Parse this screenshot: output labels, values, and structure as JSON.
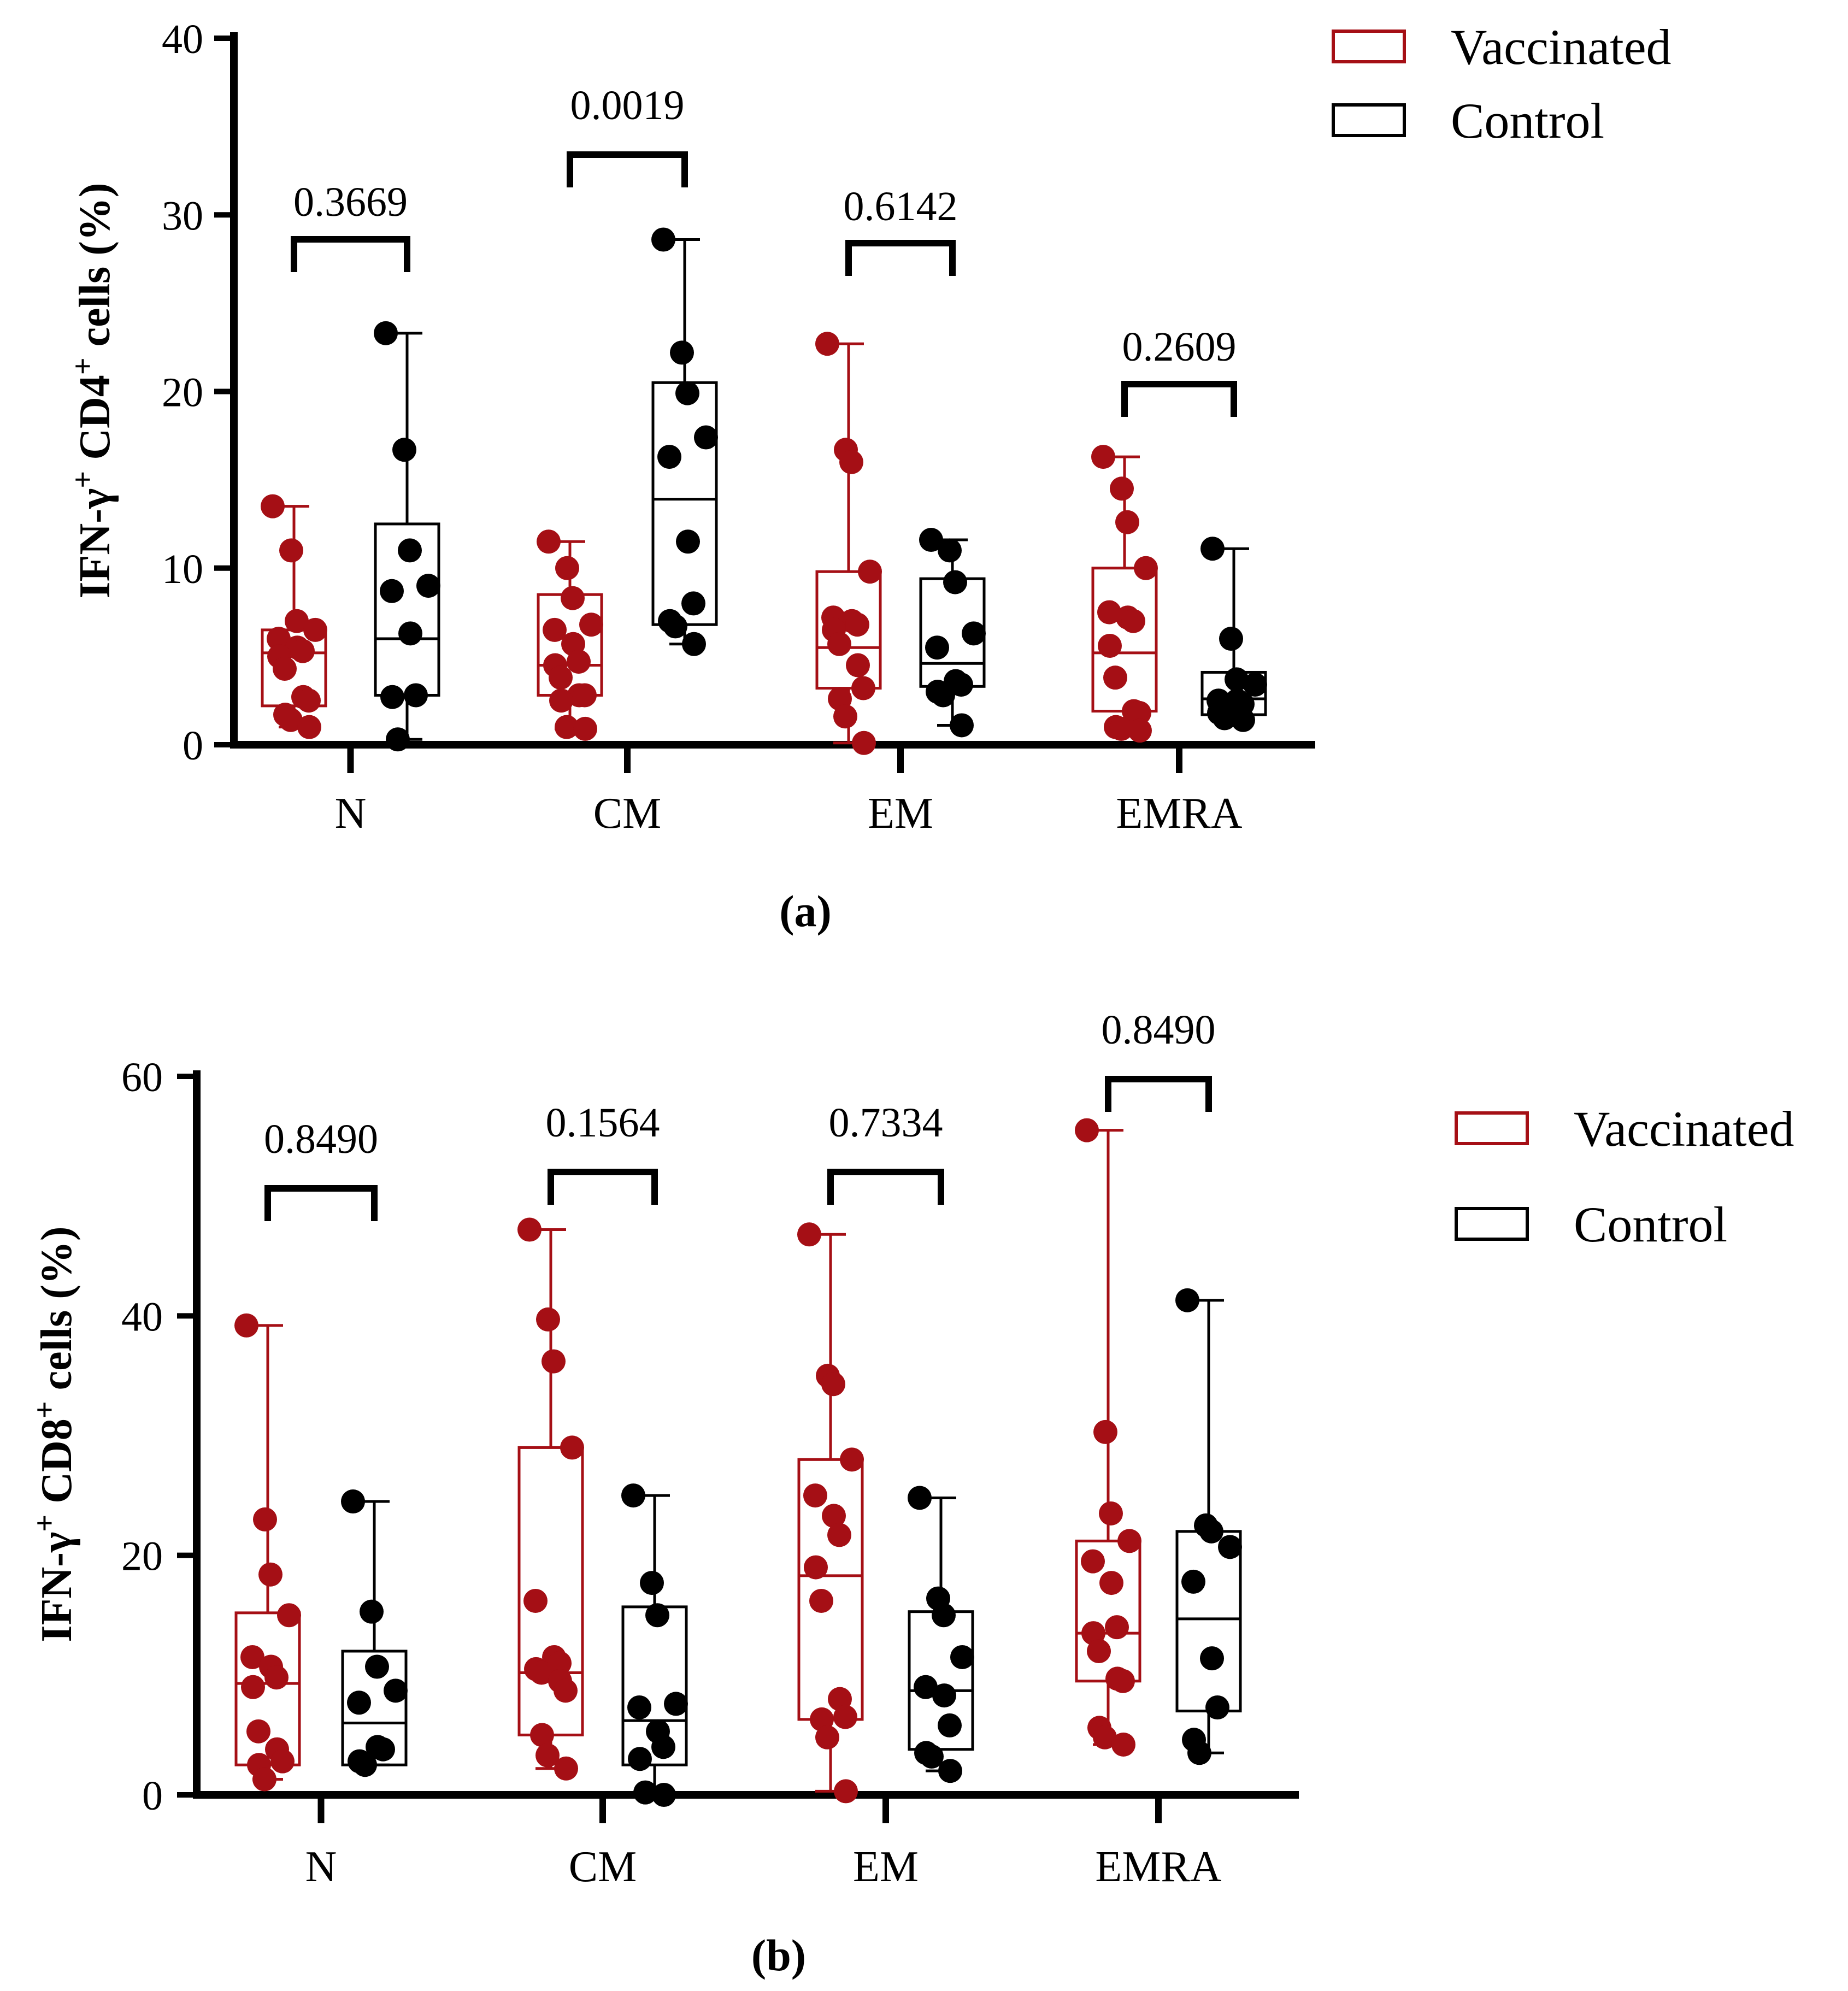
{
  "colors": {
    "vaccinated": "#a50f15",
    "control": "#000000",
    "axis": "#000000"
  },
  "chart_data": [
    {
      "type": "box-scatter",
      "panel_label": "(a)",
      "ylabel": {
        "prefix": "IFN-γ",
        "prefix_sup": "+",
        "cell": " CD4",
        "cell_sup": "+",
        "suffix": " cells (%)"
      },
      "xlabel": "",
      "ylim": [
        0,
        40
      ],
      "yticks": [
        0,
        10,
        20,
        30,
        40
      ],
      "ytick_labels": [
        "0",
        "10",
        "20",
        "30",
        "40"
      ],
      "categories": [
        "N",
        "CM",
        "EM",
        "EMRA"
      ],
      "legend": {
        "vaccinated": "Vaccinated",
        "control": "Control"
      },
      "p_values": [
        "0.3669",
        "0.0019",
        "0.6142",
        "0.2609"
      ],
      "series": [
        {
          "name": "Vaccinated",
          "groups": [
            {
              "box": {
                "min": 1.0,
                "q1": 2.2,
                "median": 5.2,
                "q3": 6.5,
                "max": 13.5
              },
              "points": [
                13.5,
                11.0,
                7.0,
                6.5,
                6.0,
                5.5,
                5.3,
                5.0,
                4.3,
                2.7,
                2.5,
                1.7,
                1.4,
                1.0
              ]
            },
            {
              "box": {
                "min": 0.9,
                "q1": 2.8,
                "median": 4.5,
                "q3": 8.5,
                "max": 11.5
              },
              "points": [
                11.5,
                10.0,
                8.3,
                6.8,
                6.5,
                5.7,
                4.7,
                4.5,
                3.8,
                2.8,
                2.8,
                2.5,
                1.0,
                0.9
              ]
            },
            {
              "box": {
                "min": 0.1,
                "q1": 3.2,
                "median": 5.5,
                "q3": 9.8,
                "max": 22.7
              },
              "points": [
                22.7,
                16.7,
                16.0,
                9.8,
                7.2,
                7.0,
                6.8,
                6.5,
                5.7,
                4.5,
                3.2,
                2.6,
                1.6,
                0.1
              ]
            },
            {
              "box": {
                "min": 0.8,
                "q1": 1.9,
                "median": 5.2,
                "q3": 10.0,
                "max": 16.3
              },
              "points": [
                16.3,
                14.5,
                12.6,
                10.0,
                7.5,
                7.2,
                7.0,
                5.6,
                3.8,
                1.9,
                1.8,
                1.0,
                0.9,
                0.8
              ]
            }
          ]
        },
        {
          "name": "Control",
          "groups": [
            {
              "box": {
                "min": 0.3,
                "q1": 2.8,
                "median": 6.0,
                "q3": 12.5,
                "max": 23.3
              },
              "points": [
                23.3,
                16.7,
                11.0,
                9.0,
                8.7,
                6.3,
                2.8,
                2.7,
                0.3
              ]
            },
            {
              "box": {
                "min": 5.7,
                "q1": 6.8,
                "median": 13.9,
                "q3": 20.5,
                "max": 28.6
              },
              "points": [
                28.6,
                22.2,
                19.9,
                17.4,
                16.3,
                11.5,
                8.0,
                7.0,
                6.7,
                5.7
              ]
            },
            {
              "box": {
                "min": 1.1,
                "q1": 3.3,
                "median": 4.6,
                "q3": 9.4,
                "max": 11.6
              },
              "points": [
                11.6,
                11.0,
                9.2,
                6.3,
                5.5,
                3.6,
                3.4,
                3.0,
                2.8,
                1.1
              ]
            },
            {
              "box": {
                "min": 1.4,
                "q1": 1.7,
                "median": 2.6,
                "q3": 4.1,
                "max": 11.1
              },
              "points": [
                11.1,
                6.0,
                3.7,
                3.4,
                2.5,
                2.5,
                2.3,
                1.8,
                1.5,
                1.4
              ]
            }
          ]
        }
      ]
    },
    {
      "type": "box-scatter",
      "panel_label": "(b)",
      "ylabel": {
        "prefix": "IFN-γ",
        "prefix_sup": "+",
        "cell": " CD8",
        "cell_sup": "+",
        "suffix": " cells (%)"
      },
      "xlabel": "",
      "ylim": [
        0,
        60
      ],
      "yticks": [
        0,
        20,
        40,
        60
      ],
      "ytick_labels": [
        "0",
        "20",
        "40",
        "60"
      ],
      "categories": [
        "N",
        "CM",
        "EM",
        "EMRA"
      ],
      "legend": {
        "vaccinated": "Vaccinated",
        "control": "Control"
      },
      "p_values": [
        "0.8490",
        "0.1564",
        "0.7334",
        "0.8490"
      ],
      "series": [
        {
          "name": "Vaccinated",
          "groups": [
            {
              "box": {
                "min": 1.3,
                "q1": 2.5,
                "median": 9.3,
                "q3": 15.2,
                "max": 39.2
              },
              "points": [
                39.2,
                23.0,
                18.4,
                15.0,
                11.5,
                10.7,
                9.8,
                9.0,
                5.3,
                3.8,
                2.8,
                2.5,
                1.3
              ]
            },
            {
              "box": {
                "min": 2.2,
                "q1": 5.0,
                "median": 10.2,
                "q3": 29.0,
                "max": 47.2
              },
              "points": [
                47.2,
                39.7,
                36.2,
                29.0,
                16.2,
                11.5,
                11.0,
                10.5,
                10.2,
                9.5,
                8.7,
                5.0,
                3.3,
                2.2
              ]
            },
            {
              "box": {
                "min": 0.3,
                "q1": 6.3,
                "median": 18.3,
                "q3": 28.0,
                "max": 46.8
              },
              "points": [
                46.8,
                35.0,
                34.3,
                28.0,
                25.0,
                23.3,
                21.7,
                19.0,
                16.2,
                8.0,
                6.5,
                6.3,
                4.8,
                0.3
              ]
            },
            {
              "box": {
                "min": 4.2,
                "q1": 9.5,
                "median": 13.5,
                "q3": 21.2,
                "max": 55.5
              },
              "points": [
                55.5,
                30.3,
                23.5,
                21.2,
                19.5,
                17.7,
                14.0,
                13.5,
                12.0,
                9.7,
                9.5,
                5.6,
                4.8,
                4.2
              ]
            }
          ]
        },
        {
          "name": "Control",
          "groups": [
            {
              "box": {
                "min": 2.5,
                "q1": 2.5,
                "median": 6.0,
                "q3": 12.0,
                "max": 24.5
              },
              "points": [
                24.5,
                15.3,
                10.7,
                8.7,
                7.7,
                4.0,
                3.8,
                2.8,
                2.5
              ]
            },
            {
              "box": {
                "min": 0.0,
                "q1": 2.5,
                "median": 6.2,
                "q3": 15.7,
                "max": 25.0
              },
              "points": [
                25.0,
                17.7,
                15.0,
                7.6,
                7.3,
                5.3,
                4.0,
                3.0,
                0.2,
                0.0
              ]
            },
            {
              "box": {
                "min": 2.0,
                "q1": 3.8,
                "median": 8.7,
                "q3": 15.3,
                "max": 24.8
              },
              "points": [
                24.8,
                16.4,
                15.0,
                11.5,
                9.0,
                8.3,
                5.8,
                3.5,
                3.2,
                2.0
              ]
            },
            {
              "box": {
                "min": 3.5,
                "q1": 7.0,
                "median": 14.7,
                "q3": 22.0,
                "max": 41.3
              },
              "points": [
                41.3,
                22.5,
                22.0,
                20.7,
                17.8,
                11.4,
                7.3,
                4.6,
                3.5
              ]
            }
          ]
        }
      ]
    }
  ]
}
